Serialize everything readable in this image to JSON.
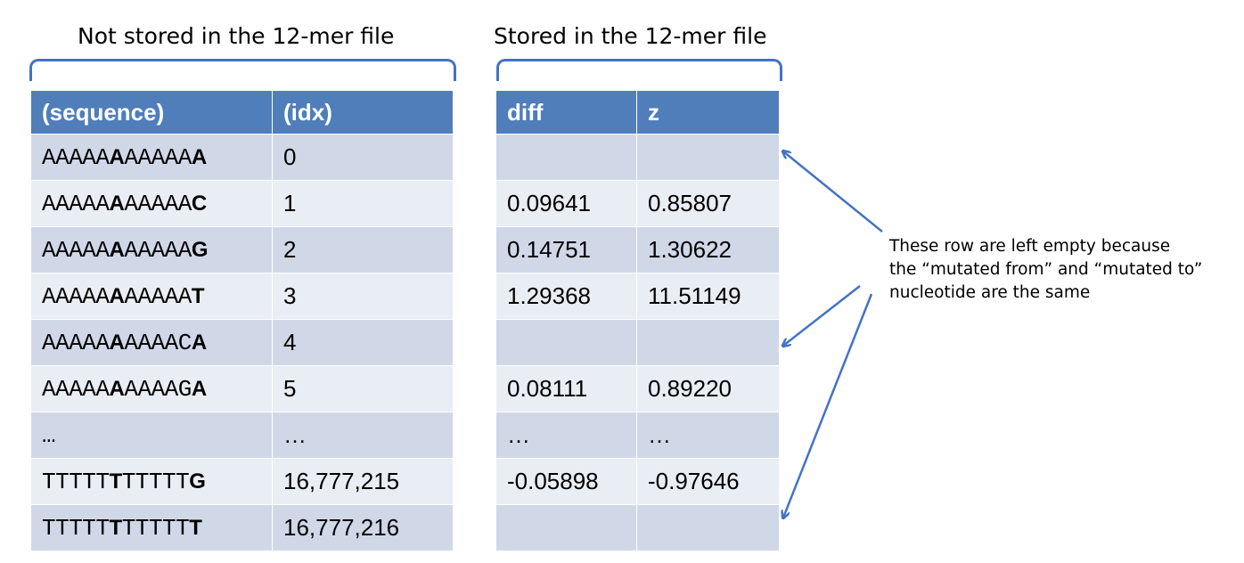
{
  "headings": {
    "left": "Not stored in the 12-mer file",
    "right": "Stored in the 12-mer file"
  },
  "left_table": {
    "headers": [
      "(sequence)",
      "(idx)"
    ],
    "rows": [
      {
        "seq_pre": "AAAAA",
        "seq_mid": "A",
        "seq_post": "AAAAA",
        "seq_end": "A",
        "idx": "0"
      },
      {
        "seq_pre": "AAAAA",
        "seq_mid": "A",
        "seq_post": "AAAAA",
        "seq_end": "C",
        "idx": "1"
      },
      {
        "seq_pre": "AAAAA",
        "seq_mid": "A",
        "seq_post": "AAAAA",
        "seq_end": "G",
        "idx": "2"
      },
      {
        "seq_pre": "AAAAA",
        "seq_mid": "A",
        "seq_post": "AAAAA",
        "seq_end": "T",
        "idx": "3"
      },
      {
        "seq_pre": "AAAAA",
        "seq_mid": "A",
        "seq_post": "AAAAC",
        "seq_end": "A",
        "idx": "4"
      },
      {
        "seq_pre": "AAAAA",
        "seq_mid": "A",
        "seq_post": "AAAAG",
        "seq_end": "A",
        "idx": "5"
      },
      {
        "seq_pre": "…",
        "seq_mid": "",
        "seq_post": "",
        "seq_end": "",
        "idx": "…"
      },
      {
        "seq_pre": "TTTTT",
        "seq_mid": "T",
        "seq_post": "TTTTT",
        "seq_end": "G",
        "idx": "16,777,215"
      },
      {
        "seq_pre": "TTTTT",
        "seq_mid": "T",
        "seq_post": "TTTTT",
        "seq_end": "T",
        "idx": "16,777,216"
      }
    ]
  },
  "right_table": {
    "headers": [
      "diff",
      "z"
    ],
    "rows": [
      {
        "diff": "",
        "z": ""
      },
      {
        "diff": "0.09641",
        "z": "0.85807"
      },
      {
        "diff": "0.14751",
        "z": "1.30622"
      },
      {
        "diff": "1.29368",
        "z": "11.51149"
      },
      {
        "diff": "",
        "z": ""
      },
      {
        "diff": "0.08111",
        "z": "0.89220"
      },
      {
        "diff": "…",
        "z": "…"
      },
      {
        "diff": "-0.05898",
        "z": "-0.97646"
      },
      {
        "diff": "",
        "z": ""
      }
    ]
  },
  "annotation": {
    "lines": [
      "These row are left empty because",
      "the “mutated from” and “mutated to”",
      "nucleotide are the same"
    ]
  },
  "colors": {
    "header_blue": "#4F7EBB",
    "row_dark": "#D0D8E8",
    "row_light": "#E9EDF4",
    "accent": "#4472C4"
  }
}
